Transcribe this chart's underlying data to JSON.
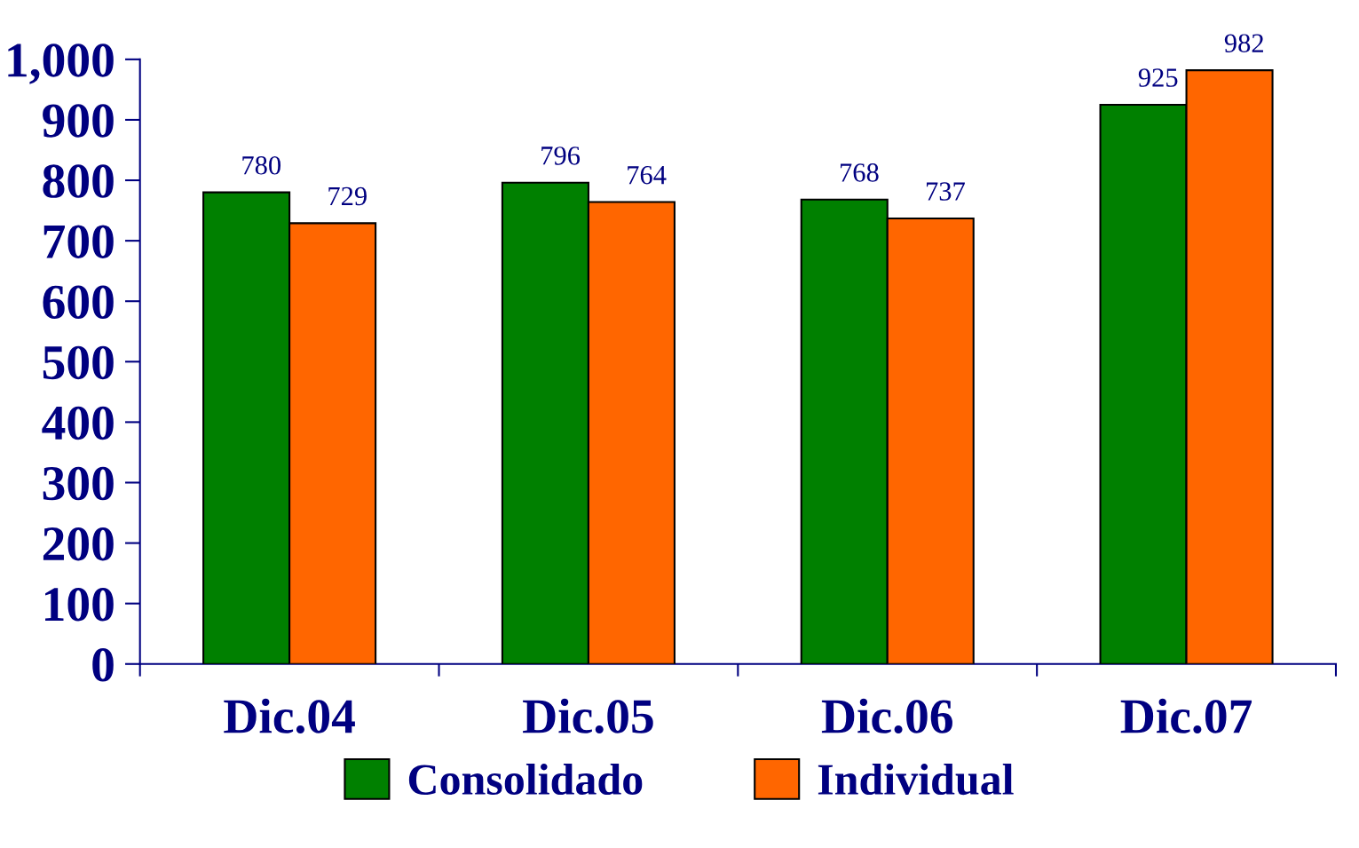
{
  "chart_data": {
    "type": "bar",
    "categories": [
      "Dic.04",
      "Dic.05",
      "Dic.06",
      "Dic.07"
    ],
    "series": [
      {
        "name": "Consolidado",
        "color": "#008000",
        "values": [
          780,
          796,
          768,
          925
        ]
      },
      {
        "name": "Individual",
        "color": "#ff6600",
        "values": [
          729,
          764,
          737,
          982
        ]
      }
    ],
    "ylim": [
      0,
      1000
    ],
    "yticks": [
      0,
      100,
      200,
      300,
      400,
      500,
      600,
      700,
      800,
      900,
      {
        "value": 1000,
        "label": "1,000"
      }
    ],
    "data_labels": true,
    "legend": "bottom",
    "grid": false
  }
}
